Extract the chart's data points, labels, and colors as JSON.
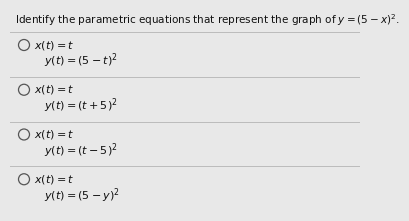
{
  "title": "Identify the parametric equations that represent the graph of $y = (5 - x)^2$.",
  "title_fontsize": 7.5,
  "options": [
    {
      "line1": "$x(t) = t$",
      "line2": "$y(t) = (5 - t)^2$"
    },
    {
      "line1": "$x(t) = t$",
      "line2": "$y(t) = (t + 5)^2$"
    },
    {
      "line1": "$x(t) = t$",
      "line2": "$y(t) = (t - 5)^2$"
    },
    {
      "line1": "$x(t) = t$",
      "line2": "$y(t) = (5 - y)^2$"
    }
  ],
  "bg_color": "#e8e8e8",
  "text_color": "#111111",
  "divider_color": "#bbbbbb",
  "circle_color": "#555555",
  "option_fontsize": 8.0
}
